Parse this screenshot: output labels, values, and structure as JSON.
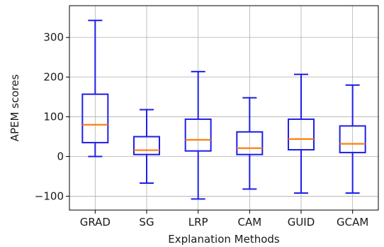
{
  "chart_data": {
    "type": "box",
    "xlabel": "Explanation Methods",
    "ylabel": "APEM scores",
    "ylim": [
      -135,
      380
    ],
    "yticks": [
      -100,
      0,
      100,
      200,
      300
    ],
    "ytick_labels": [
      "−100",
      "0",
      "100",
      "200",
      "300"
    ],
    "grid": true,
    "box_color": "#1f1fe8",
    "median_color": "#ff7f0e",
    "categories": [
      "GRAD",
      "SG",
      "LRP",
      "CAM",
      "GUID",
      "GCAM"
    ],
    "boxes": [
      {
        "label": "GRAD",
        "whisker_low": 0,
        "q1": 35,
        "median": 80,
        "q3": 157,
        "whisker_high": 343
      },
      {
        "label": "SG",
        "whisker_low": -67,
        "q1": 5,
        "median": 16,
        "q3": 50,
        "whisker_high": 118
      },
      {
        "label": "LRP",
        "whisker_low": -107,
        "q1": 14,
        "median": 42,
        "q3": 94,
        "whisker_high": 214
      },
      {
        "label": "CAM",
        "whisker_low": -82,
        "q1": 5,
        "median": 21,
        "q3": 62,
        "whisker_high": 148
      },
      {
        "label": "GUID",
        "whisker_low": -92,
        "q1": 17,
        "median": 44,
        "q3": 94,
        "whisker_high": 207
      },
      {
        "label": "GCAM",
        "whisker_low": -92,
        "q1": 10,
        "median": 32,
        "q3": 77,
        "whisker_high": 180
      }
    ]
  }
}
